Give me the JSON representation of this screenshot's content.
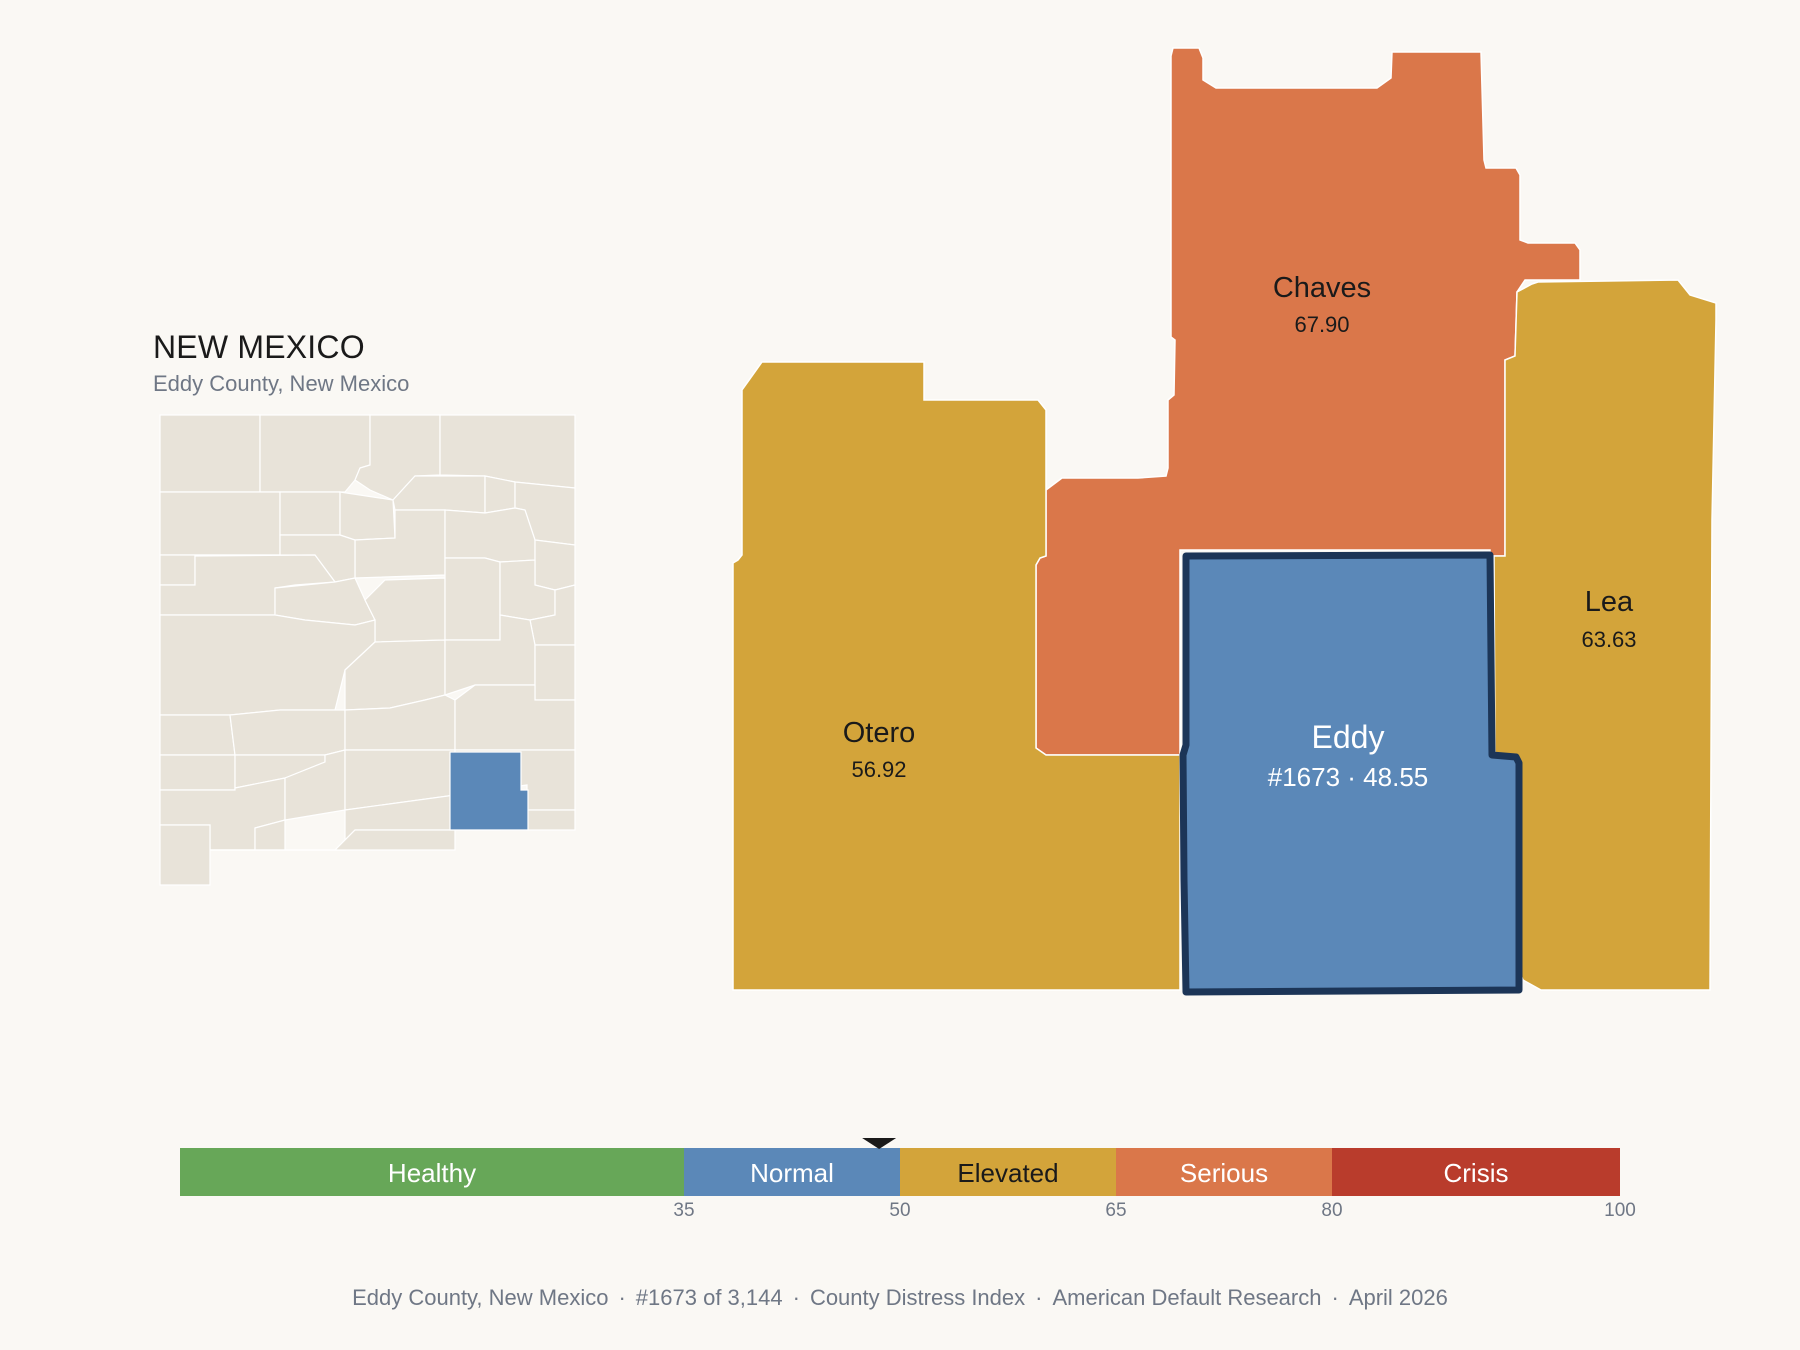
{
  "inset": {
    "state_title": "NEW MEXICO",
    "subtitle": "Eddy County, New Mexico"
  },
  "colors": {
    "background": "#faf8f4",
    "inset_fill": "#e8e3d9",
    "inset_stroke": "#ffffff",
    "selected_fill": "#5b88b8",
    "selected_outline": "#1c3557",
    "healthy": "#67a758",
    "normal": "#5b88b8",
    "elevated": "#d3a43a",
    "serious": "#da774a",
    "crisis": "#b93c2c"
  },
  "counties": [
    {
      "name": "Chaves",
      "value": "67.90",
      "category": "serious"
    },
    {
      "name": "Lea",
      "value": "63.63",
      "category": "elevated"
    },
    {
      "name": "Otero",
      "value": "56.92",
      "category": "elevated"
    },
    {
      "name": "Eddy",
      "value": "#1673 · 48.55",
      "category": "normal",
      "selected": true
    }
  ],
  "scale": {
    "segments": [
      {
        "label": "Healthy",
        "from": 0,
        "to": 35,
        "color": "#67a758"
      },
      {
        "label": "Normal",
        "from": 35,
        "to": 50,
        "color": "#5b88b8"
      },
      {
        "label": "Elevated",
        "from": 50,
        "to": 65,
        "color": "#d3a43a"
      },
      {
        "label": "Serious",
        "from": 65,
        "to": 80,
        "color": "#da774a"
      },
      {
        "label": "Crisis",
        "from": 80,
        "to": 100,
        "color": "#b93c2c"
      }
    ],
    "ticks": [
      "35",
      "50",
      "65",
      "80",
      "100"
    ],
    "tick_values": [
      35,
      50,
      65,
      80,
      100
    ],
    "marker_value": 48.55
  },
  "footer": {
    "county": "Eddy County, New Mexico",
    "rank": "#1673 of 3,144",
    "index": "County Distress Index",
    "source": "American Default Research",
    "date": "April 2026"
  }
}
